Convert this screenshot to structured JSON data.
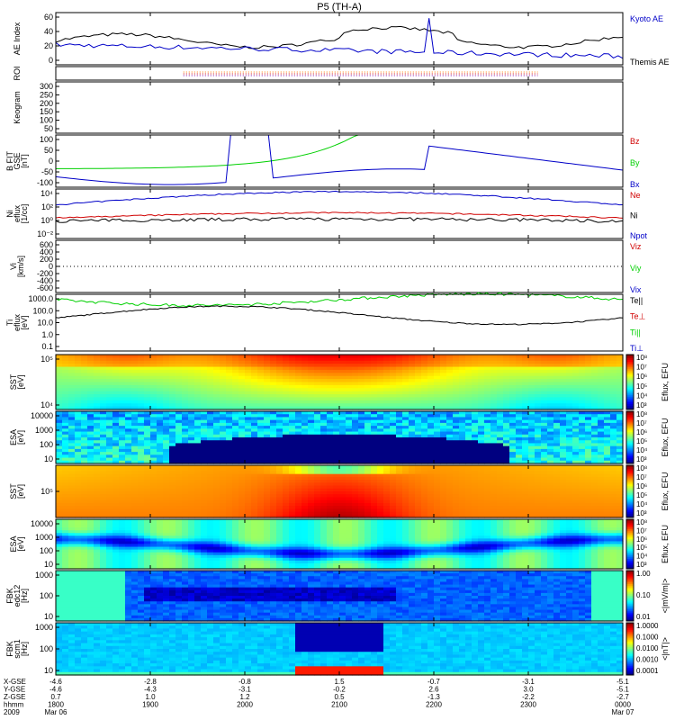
{
  "title": "P5 (TH-A)",
  "colors": {
    "black": "#000000",
    "blue": "#0000c8",
    "green": "#00d000",
    "red": "#d00000",
    "orange": "#ff8000",
    "purple": "#8000a0"
  },
  "x_ticks": [
    "1800",
    "1900",
    "2000",
    "2100",
    "2200",
    "2300",
    "0000"
  ],
  "x_tick_hours": [
    18,
    19,
    20,
    21,
    22,
    23,
    24
  ],
  "x_range_hours": [
    18,
    24
  ],
  "bottom_rows": {
    "labels": [
      "X-GSE",
      "Y-GSE",
      "Z-GSE",
      "hhmm",
      "2009"
    ],
    "values": [
      [
        "-4.6",
        "-4.6",
        "0.7",
        "1800",
        "Mar 06"
      ],
      [
        "-2.8",
        "-4.3",
        "1.0",
        "1900",
        ""
      ],
      [
        "-0.8",
        "-3.1",
        "1.2",
        "2000",
        ""
      ],
      [
        "1.5",
        "-0.2",
        "0.5",
        "2100",
        ""
      ],
      [
        "-0.7",
        "2.6",
        "-1.3",
        "2200",
        ""
      ],
      [
        "-3.1",
        "3.0",
        "-2.2",
        "2300",
        ""
      ],
      [
        "-5.1",
        "-5.1",
        "-2.7",
        "0000",
        "Mar 07"
      ]
    ]
  },
  "panels": [
    {
      "ylabel": "AE Index",
      "ylabel2": "",
      "ylabel3": "",
      "ticks": [
        "60",
        "40",
        "20",
        "0"
      ],
      "legend": [
        {
          "text": "Kyoto AE",
          "color": "#0000c8"
        },
        {
          "text": "Themis AE",
          "color": "#000000"
        }
      ]
    },
    {
      "ylabel": "ROI",
      "ylabel2": "",
      "ylabel3": "",
      "ticks": [],
      "legend": []
    },
    {
      "ylabel": "Keogram",
      "ylabel2": "",
      "ylabel3": "",
      "ticks": [
        "300",
        "250",
        "200",
        "150",
        "100",
        "50"
      ],
      "legend": []
    },
    {
      "ylabel": "B FIT",
      "ylabel2": "GSE",
      "ylabel3": "[nT]",
      "ticks": [
        "100",
        "50",
        "0",
        "-50",
        "-100"
      ],
      "legend": [
        {
          "text": "Bz",
          "color": "#d00000"
        },
        {
          "text": "By",
          "color": "#00d000"
        },
        {
          "text": "Bx",
          "color": "#0000c8"
        }
      ]
    },
    {
      "ylabel": "Ni",
      "ylabel2": "eflux",
      "ylabel3": "[1/cc]",
      "ticks": [
        "10⁴",
        "10²",
        "10⁰",
        "10⁻²"
      ],
      "legend": [
        {
          "text": "Ne",
          "color": "#d00000"
        },
        {
          "text": "Ni",
          "color": "#000000"
        },
        {
          "text": "Npot",
          "color": "#0000c8"
        }
      ]
    },
    {
      "ylabel": "Vi",
      "ylabel2": "",
      "ylabel3": "[km/s]",
      "ticks": [
        "600",
        "400",
        "200",
        "0",
        "-200",
        "-400",
        "-600"
      ],
      "legend": [
        {
          "text": "Viz",
          "color": "#d00000"
        },
        {
          "text": "Viy",
          "color": "#00d000"
        },
        {
          "text": "Vix",
          "color": "#0000c8"
        }
      ]
    },
    {
      "ylabel": "Ti",
      "ylabel2": "eflux",
      "ylabel3": "[eV]",
      "ticks": [
        "1000.0",
        "100.0",
        "10.0",
        "1.0",
        "0.1"
      ],
      "legend": [
        {
          "text": "Te||",
          "color": "#000000"
        },
        {
          "text": "Te⊥",
          "color": "#d00000"
        },
        {
          "text": "Ti||",
          "color": "#00d000"
        },
        {
          "text": "Ti⊥",
          "color": "#0000c8"
        }
      ]
    },
    {
      "ylabel": "SST",
      "ylabel2": "",
      "ylabel3": "[eV]",
      "ticks": [
        "10⁵",
        "10⁴"
      ],
      "legend": []
    },
    {
      "ylabel": "ESA",
      "ylabel2": "",
      "ylabel3": "[eV]",
      "ticks": [
        "10000",
        "1000",
        "100",
        "10"
      ],
      "legend": []
    },
    {
      "ylabel": "SST",
      "ylabel2": "",
      "ylabel3": "[eV]",
      "ticks": [
        "10⁵"
      ],
      "legend": []
    },
    {
      "ylabel": "ESA",
      "ylabel2": "",
      "ylabel3": "[eV]",
      "ticks": [
        "10000",
        "1000",
        "100",
        "10"
      ],
      "legend": []
    },
    {
      "ylabel": "FBK",
      "ylabel2": "edc12",
      "ylabel3": "[Hz]",
      "ticks": [
        "1000",
        "100",
        "10"
      ],
      "legend": []
    },
    {
      "ylabel": "FBK",
      "ylabel2": "scm1",
      "ylabel3": "[Hz]",
      "ticks": [
        "1000",
        "100",
        "10"
      ],
      "legend": []
    }
  ],
  "colorbars": [
    {
      "title": "Eflux, EFU",
      "ticks": [
        "10⁸",
        "10⁷",
        "10⁶",
        "10⁵",
        "10⁴",
        "10³"
      ]
    },
    {
      "title": "Eflux, EFU",
      "ticks": [
        "10⁸",
        "10⁷",
        "10⁶",
        "10⁵",
        "10⁴",
        "10³"
      ]
    },
    {
      "title": "Eflux, EFU",
      "ticks": [
        "10⁸",
        "10⁷",
        "10⁶",
        "10⁵",
        "10⁴",
        "10³"
      ]
    },
    {
      "title": "Eflux, EFU",
      "ticks": [
        "10⁸",
        "10⁷",
        "10⁶",
        "10⁵",
        "10⁴",
        "10³"
      ]
    },
    {
      "title": "<|mV/m|>",
      "ticks": [
        "1.00",
        "0.10",
        "0.01"
      ]
    },
    {
      "title": "<|nT|>",
      "ticks": [
        "1.0000",
        "0.1000",
        "0.0100",
        "0.0010",
        "0.0001"
      ]
    }
  ],
  "chart_data": {
    "type": "line",
    "title": "P5 (TH-A)",
    "x_unit_label": "hhmm",
    "x": [
      "1800",
      "1900",
      "2000",
      "2100",
      "2200",
      "2300",
      "0000"
    ],
    "series": [
      {
        "name": "Themis AE",
        "values": [
          30,
          28,
          30,
          38,
          42,
          35,
          30
        ]
      },
      {
        "name": "Kyoto AE",
        "values": [
          24,
          18,
          12,
          14,
          25,
          8,
          6
        ]
      },
      {
        "name": "Bx",
        "values": [
          -50,
          -70,
          100,
          -10,
          -10,
          -30,
          -35
        ]
      },
      {
        "name": "By",
        "values": [
          -30,
          -20,
          50,
          100,
          100,
          100,
          60
        ]
      },
      {
        "name": "Te||",
        "values": [
          10,
          20,
          100,
          10,
          100,
          100,
          20
        ]
      },
      {
        "name": "Ti||",
        "values": [
          200,
          300,
          300,
          2000,
          300,
          400,
          150
        ]
      }
    ]
  }
}
